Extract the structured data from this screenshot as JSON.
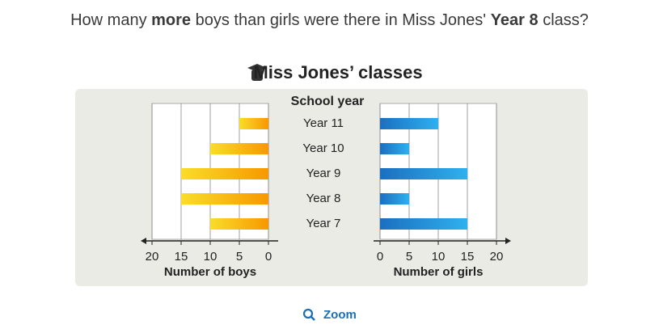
{
  "question": {
    "parts": [
      {
        "text": "How many ",
        "bold": false
      },
      {
        "text": "more",
        "bold": true
      },
      {
        "text": " boys than girls were there in Miss Jones' ",
        "bold": false
      },
      {
        "text": "Year 8",
        "bold": true
      },
      {
        "text": " class?",
        "bold": false
      }
    ]
  },
  "chart_data": [
    {
      "type": "bar",
      "orientation": "horizontal",
      "title": "Miss Jones’ classes",
      "y_label": "School year",
      "categories": [
        "Year 11",
        "Year 10",
        "Year 9",
        "Year 8",
        "Year 7"
      ],
      "values": [
        5,
        10,
        15,
        15,
        10
      ],
      "colors": [
        "#f9dd2a",
        "#f79800"
      ],
      "xlim": [
        20,
        0
      ],
      "xticks": [
        20,
        15,
        10,
        5,
        0
      ],
      "x_label": "Number of boys",
      "grid": true
    },
    {
      "type": "bar",
      "orientation": "horizontal",
      "values": [
        10,
        5,
        15,
        5,
        15
      ],
      "colors": [
        "#1b6fc0",
        "#2fb0ee"
      ],
      "xlim": [
        0,
        20
      ],
      "xticks": [
        0,
        5,
        10,
        15,
        20
      ],
      "x_label": "Number of girls",
      "grid": true
    }
  ],
  "zoom": "Zoom"
}
